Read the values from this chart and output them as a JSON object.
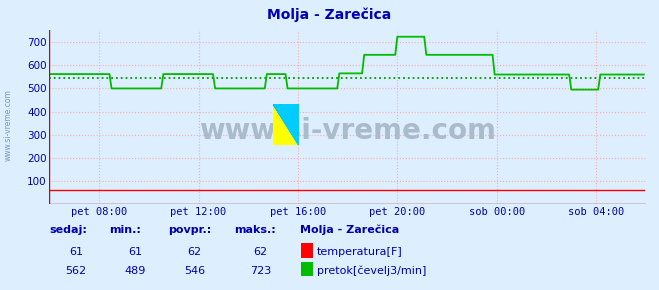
{
  "title": "Molja - Zarečica",
  "bg_color": "#ddeeff",
  "plot_bg_color": "#ddeeff",
  "grid_color": "#ffaaaa",
  "ylabel_color": "#0000aa",
  "tick_color": "#0000aa",
  "ylim": [
    0,
    750
  ],
  "yticks": [
    100,
    200,
    300,
    400,
    500,
    600,
    700
  ],
  "xlim": [
    0,
    288
  ],
  "xtick_positions": [
    24,
    72,
    120,
    168,
    216,
    264
  ],
  "xtick_labels": [
    "pet 08:00",
    "pet 12:00",
    "pet 16:00",
    "pet 20:00",
    "sob 00:00",
    "sob 04:00"
  ],
  "temp_color": "#ff0000",
  "flow_color": "#00bb00",
  "avg_color": "#009900",
  "watermark": "www.si-vreme.com",
  "watermark_color": "#aabbcc",
  "sedaj_label": "sedaj:",
  "min_label": "min.:",
  "povpr_label": "povpr.:",
  "maks_label": "maks.:",
  "station_label": "Molja - Zarečica",
  "temp_label": "temperatura[F]",
  "flow_label": "pretok[čevelj3/min]",
  "temp_sedaj": 61,
  "temp_min": 61,
  "temp_povpr": 62,
  "temp_maks": 62,
  "flow_sedaj": 562,
  "flow_min": 489,
  "flow_povpr": 546,
  "flow_maks": 723,
  "flow_avg_line": 546,
  "left_label": "www.si-vreme.com"
}
